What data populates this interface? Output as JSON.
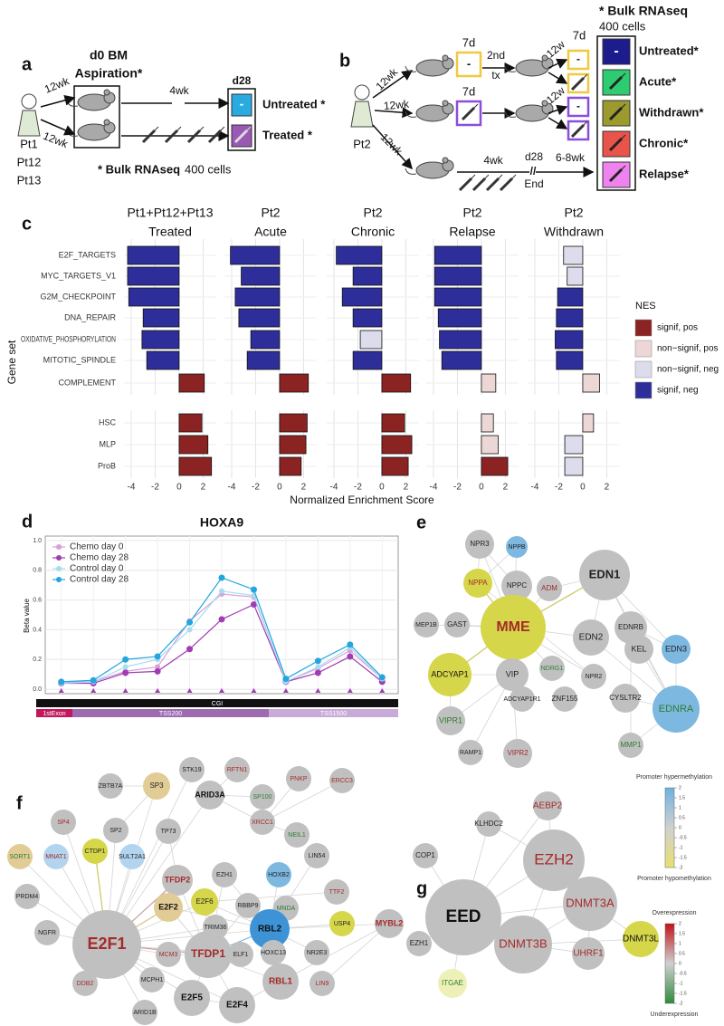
{
  "panels": {
    "a": {
      "label": "a",
      "step1": "d0 BM",
      "step1b": "Aspiration*",
      "time": "d28",
      "interval_1": "12wk",
      "interval_2": "12wk",
      "interval_3": "4wk",
      "patients": [
        "Pt1",
        "Pt12",
        "Pt13"
      ],
      "groups": [
        {
          "name": "Untreated *",
          "color": "#29abe2"
        },
        {
          "name": "Treated *",
          "color": "#9b59b6"
        }
      ],
      "symbol": "-",
      "note_bold": "* Bulk RNAseq",
      "note": "400 cells"
    },
    "b": {
      "label": "b",
      "patient": "Pt2",
      "intervals": [
        "12wk",
        "12wk",
        "12wk"
      ],
      "boxes": [
        "7d",
        "7d",
        "7d"
      ],
      "second_tx": [
        "2nd",
        "tx"
      ],
      "intervals_2": [
        "12w",
        "12w"
      ],
      "interval_bottom": "4wk",
      "day": "d28",
      "end": "End",
      "break": "//",
      "interval_relapse": "6-8wk",
      "symbol": "-",
      "note_bold": "* Bulk RNAseq",
      "note": "400 cells",
      "groups": [
        {
          "name": "Untreated*",
          "color": "#1c1c8c"
        },
        {
          "name": "Acute*",
          "color": "#2ecc71"
        },
        {
          "name": "Withdrawn*",
          "color": "#9a9a2e"
        },
        {
          "name": "Chronic*",
          "color": "#e8534a"
        },
        {
          "name": "Relapse*",
          "color": "#ee82ee"
        }
      ]
    },
    "e": {
      "label": "e",
      "nodes": [
        {
          "label": "NPR3",
          "color": "#c0c0c0",
          "text_color": "#222"
        },
        {
          "label": "NPPB",
          "color": "#7db8e0",
          "text_color": "#222"
        },
        {
          "label": "NPPC",
          "color": "#c0c0c0",
          "text_color": "#222"
        },
        {
          "label": "NPPA",
          "color": "#d6d64a",
          "text_color": "#a52a2a"
        },
        {
          "label": "ADM",
          "color": "#c0c0c0",
          "text_color": "#a52a2a"
        },
        {
          "label": "EDN1",
          "color": "#c0c0c0",
          "text_color": "#222"
        },
        {
          "label": "EDNRB",
          "color": "#c0c0c0",
          "text_color": "#222"
        },
        {
          "label": "MEP1B",
          "color": "#c0c0c0",
          "text_color": "#222"
        },
        {
          "label": "GAST",
          "color": "#c0c0c0",
          "text_color": "#222"
        },
        {
          "label": "MME",
          "color": "#d6d64a",
          "text_color": "#a52a2a"
        },
        {
          "label": "EDN2",
          "color": "#c0c0c0",
          "text_color": "#222"
        },
        {
          "label": "KEL",
          "color": "#c0c0c0",
          "text_color": "#222"
        },
        {
          "label": "EDN3",
          "color": "#7db8e0",
          "text_color": "#222"
        },
        {
          "label": "NDRG1",
          "color": "#c0c0c0",
          "text_color": "#2e7d32"
        },
        {
          "label": "NPR2",
          "color": "#c0c0c0",
          "text_color": "#222"
        },
        {
          "label": "ADCYAP1",
          "color": "#d6d64a",
          "text_color": "#111"
        },
        {
          "label": "VIP",
          "color": "#c0c0c0",
          "text_color": "#222"
        },
        {
          "label": "ADCYAP1R1",
          "color": "#c0c0c0",
          "text_color": "#222"
        },
        {
          "label": "ZNF155",
          "color": "#c0c0c0",
          "text_color": "#222"
        },
        {
          "label": "CYSLTR2",
          "color": "#c0c0c0",
          "text_color": "#222"
        },
        {
          "label": "EDNRA",
          "color": "#7db8e0",
          "text_color": "#2e7d32"
        },
        {
          "label": "VIPR1",
          "color": "#c0c0c0",
          "text_color": "#2e7d32"
        },
        {
          "label": "RAMP1",
          "color": "#c0c0c0",
          "text_color": "#222"
        },
        {
          "label": "VIPR2",
          "color": "#c0c0c0",
          "text_color": "#a52a2a"
        },
        {
          "label": "MMP1",
          "color": "#c0c0c0",
          "text_color": "#2e7d32"
        }
      ]
    },
    "f": {
      "label": "f",
      "nodes": [
        {
          "label": "STK19",
          "color": "#c0c0c0",
          "text_color": "#222"
        },
        {
          "label": "RFTN1",
          "color": "#c0c0c0",
          "text_color": "#a52a2a"
        },
        {
          "label": "ZBTB7A",
          "color": "#c0c0c0",
          "text_color": "#222"
        },
        {
          "label": "SP3",
          "color": "#e2cc95",
          "text_color": "#222"
        },
        {
          "label": "ARID3A",
          "color": "#c0c0c0",
          "text_color": "#111"
        },
        {
          "label": "SP100",
          "color": "#c0c0c0",
          "text_color": "#2e7d32"
        },
        {
          "label": "PNKP",
          "color": "#c0c0c0",
          "text_color": "#a52a2a"
        },
        {
          "label": "ERCC3",
          "color": "#c0c0c0",
          "text_color": "#a52a2a"
        },
        {
          "label": "SP4",
          "color": "#c0c0c0",
          "text_color": "#a52a2a"
        },
        {
          "label": "XRCC1",
          "color": "#c0c0c0",
          "text_color": "#a52a2a"
        },
        {
          "label": "NEIL1",
          "color": "#c0c0c0",
          "text_color": "#2e7d32"
        },
        {
          "label": "SP2",
          "color": "#c0c0c0",
          "text_color": "#222"
        },
        {
          "label": "TP73",
          "color": "#c0c0c0",
          "text_color": "#222"
        },
        {
          "label": "CTDP1",
          "color": "#d6d64a",
          "text_color": "#222"
        },
        {
          "label": "MNAT1",
          "color": "#b2d4ee",
          "text_color": "#a52a2a"
        },
        {
          "label": "SULT2A1",
          "color": "#b2d4ee",
          "text_color": "#222"
        },
        {
          "label": "TFDP2",
          "color": "#c0c0c0",
          "text_color": "#a52a2a"
        },
        {
          "label": "EZH1",
          "color": "#c0c0c0",
          "text_color": "#222"
        },
        {
          "label": "SORT1",
          "color": "#e2cc95",
          "text_color": "#2e7d32"
        },
        {
          "label": "HOXB2",
          "color": "#7db8e0",
          "text_color": "#222"
        },
        {
          "label": "LIN54",
          "color": "#c0c0c0",
          "text_color": "#222"
        },
        {
          "label": "PRDM4",
          "color": "#c0c0c0",
          "text_color": "#222"
        },
        {
          "label": "E2F6",
          "color": "#d6d64a",
          "text_color": "#222"
        },
        {
          "label": "RBBP9",
          "color": "#c0c0c0",
          "text_color": "#222"
        },
        {
          "label": "MNDA",
          "color": "#c0c0c0",
          "text_color": "#2e7d32"
        },
        {
          "label": "TTF2",
          "color": "#c0c0c0",
          "text_color": "#a52a2a"
        },
        {
          "label": "E2F2",
          "color": "#e2cc95",
          "text_color": "#111"
        },
        {
          "label": "TRIM36",
          "color": "#c0c0c0",
          "text_color": "#222"
        },
        {
          "label": "RBL2",
          "color": "#3d93d6",
          "text_color": "#111"
        },
        {
          "label": "USP4",
          "color": "#d6d64a",
          "text_color": "#222"
        },
        {
          "label": "MYBL2",
          "color": "#c0c0c0",
          "text_color": "#a52a2a"
        },
        {
          "label": "NGFR",
          "color": "#c0c0c0",
          "text_color": "#222"
        },
        {
          "label": "E2F1",
          "color": "#c0c0c0",
          "text_color": "#a52a2a"
        },
        {
          "label": "HOXC13",
          "color": "#c0c0c0",
          "text_color": "#222"
        },
        {
          "label": "NR2E3",
          "color": "#c0c0c0",
          "text_color": "#222"
        },
        {
          "label": "MCM3",
          "color": "#c0c0c0",
          "text_color": "#a52a2a"
        },
        {
          "label": "TFDP1",
          "color": "#c0c0c0",
          "text_color": "#a52a2a"
        },
        {
          "label": "ELF1",
          "color": "#c0c0c0",
          "text_color": "#222"
        },
        {
          "label": "MCPH1",
          "color": "#c0c0c0",
          "text_color": "#222"
        },
        {
          "label": "LIN9",
          "color": "#c0c0c0",
          "text_color": "#a52a2a"
        },
        {
          "label": "RBL1",
          "color": "#c0c0c0",
          "text_color": "#a52a2a"
        },
        {
          "label": "DDB2",
          "color": "#c0c0c0",
          "text_color": "#a52a2a"
        },
        {
          "label": "E2F5",
          "color": "#c0c0c0",
          "text_color": "#111"
        },
        {
          "label": "E2F4",
          "color": "#c0c0c0",
          "text_color": "#111"
        },
        {
          "label": "ARID1B",
          "color": "#c0c0c0",
          "text_color": "#222"
        }
      ]
    },
    "g": {
      "label": "g",
      "nodes": [
        {
          "label": "AEBP2",
          "color": "#c0c0c0",
          "text_color": "#a52a2a"
        },
        {
          "label": "KLHDC2",
          "color": "#c0c0c0",
          "text_color": "#222"
        },
        {
          "label": "EZH2",
          "color": "#c0c0c0",
          "text_color": "#a52a2a"
        },
        {
          "label": "COP1",
          "color": "#c0c0c0",
          "text_color": "#222"
        },
        {
          "label": "EED",
          "color": "#c0c0c0",
          "text_color": "#111"
        },
        {
          "label": "DNMT3A",
          "color": "#c0c0c0",
          "text_color": "#a52a2a"
        },
        {
          "label": "EZH1",
          "color": "#c0c0c0",
          "text_color": "#222"
        },
        {
          "label": "DNMT3B",
          "color": "#c0c0c0",
          "text_color": "#a52a2a"
        },
        {
          "label": "DNMT3L",
          "color": "#d6d64a",
          "text_color": "#111"
        },
        {
          "label": "UHRF1",
          "color": "#c0c0c0",
          "text_color": "#a52a2a"
        },
        {
          "label": "ITGAE",
          "color": "#eef0b8",
          "text_color": "#2e7d32"
        }
      ],
      "methylation_scale": {
        "top": "Promoter hypermethylation",
        "bottom": "Promoter hypomethylation",
        "colors": [
          "#6fb2e0",
          "#d0d0d0",
          "#e8e070"
        ]
      },
      "expression_scale": {
        "top": "Overexpression",
        "bottom": "Underexpression",
        "colors": [
          "#c0141a",
          "#d0d0d0",
          "#2e8b3a"
        ]
      },
      "scale_ticks": [
        2,
        1.5,
        1,
        0.5,
        0,
        -0.5,
        -1,
        -1.5,
        -2
      ]
    }
  },
  "chart_data": [
    {
      "type": "bar",
      "orientation": "horizontal",
      "label": "c",
      "categories": [
        "E2F_TARGETS",
        "MYC_TARGETS_V1",
        "G2M_CHECKPOINT",
        "DNA_REPAIR",
        "OXIDATIVE_PHOSPHORYLATION",
        "MITOTIC_SPINDLE",
        "COMPLEMENT",
        "HSC",
        "MLP",
        "ProB"
      ],
      "facets": [
        {
          "title": "Pt1+Pt12+Pt13",
          "subtitle": "Treated",
          "values": [
            -4.3,
            -4.3,
            -4.2,
            -3.0,
            -3.1,
            -2.7,
            2.1,
            1.9,
            2.4,
            2.7
          ],
          "colors": [
            "#2e2e9a",
            "#2e2e9a",
            "#2e2e9a",
            "#2e2e9a",
            "#2e2e9a",
            "#2e2e9a",
            "#8b2323",
            "#8b2323",
            "#8b2323",
            "#8b2323"
          ]
        },
        {
          "title": "Pt2",
          "subtitle": "Acute",
          "values": [
            -4.1,
            -3.2,
            -3.7,
            -3.4,
            -2.4,
            -2.7,
            2.4,
            2.3,
            2.2,
            1.8
          ],
          "colors": [
            "#2e2e9a",
            "#2e2e9a",
            "#2e2e9a",
            "#2e2e9a",
            "#2e2e9a",
            "#2e2e9a",
            "#8b2323",
            "#8b2323",
            "#8b2323",
            "#8b2323"
          ]
        },
        {
          "title": "Pt2",
          "subtitle": "Chronic",
          "values": [
            -3.8,
            -2.4,
            -3.3,
            -2.4,
            -1.8,
            -2.4,
            2.4,
            1.9,
            2.5,
            2.2
          ],
          "colors": [
            "#2e2e9a",
            "#2e2e9a",
            "#2e2e9a",
            "#2e2e9a",
            "#dcdcec",
            "#2e2e9a",
            "#8b2323",
            "#8b2323",
            "#8b2323",
            "#8b2323"
          ]
        },
        {
          "title": "Pt2",
          "subtitle": "Relapse",
          "values": [
            -3.9,
            -3.9,
            -3.9,
            -3.6,
            -3.5,
            -3.3,
            1.2,
            1.0,
            1.4,
            2.2
          ],
          "colors": [
            "#2e2e9a",
            "#2e2e9a",
            "#2e2e9a",
            "#2e2e9a",
            "#2e2e9a",
            "#2e2e9a",
            "#ecd6d6",
            "#ecd6d6",
            "#ecd6d6",
            "#8b2323"
          ]
        },
        {
          "title": "Pt2",
          "subtitle": "Withdrawn",
          "values": [
            -1.6,
            -1.3,
            -2.1,
            -2.2,
            -2.3,
            -2.2,
            1.4,
            0.9,
            -1.5,
            -1.5
          ],
          "colors": [
            "#dcdcec",
            "#dcdcec",
            "#2e2e9a",
            "#2e2e9a",
            "#2e2e9a",
            "#2e2e9a",
            "#ecd6d6",
            "#ecd6d6",
            "#dcdcec",
            "#dcdcec"
          ]
        }
      ],
      "xlim": [
        -4.6,
        3.1
      ],
      "xticks": [
        -4,
        -2,
        0,
        2
      ],
      "grid": true,
      "xlabel": "Normalized Enrichment Score",
      "ylabel": "Gene set",
      "legend_title": "NES",
      "legend": [
        {
          "name": "signif, pos",
          "color": "#8b2323"
        },
        {
          "name": "non−signif, pos",
          "color": "#ecd6d6"
        },
        {
          "name": "non−signif, neg",
          "color": "#dcdcec"
        },
        {
          "name": "signif, neg",
          "color": "#2e2e9a"
        }
      ]
    },
    {
      "type": "line",
      "label": "d",
      "title": "HOXA9",
      "ylabel": "Beta value",
      "categories": [
        null,
        null,
        null,
        null,
        null,
        null,
        null,
        null,
        null,
        null,
        null
      ],
      "ylim": [
        -0.03,
        1.03
      ],
      "yticks": [
        {
          "value": 0,
          "label": "0.0"
        },
        {
          "value": 0.2,
          "label": "0.2"
        },
        {
          "value": 0.4,
          "label": "0.4"
        },
        {
          "value": 0.6,
          "label": "0.6"
        },
        {
          "value": 0.8,
          "label": "0.8"
        },
        {
          "value": 1,
          "label": "1.0"
        }
      ],
      "grid": true,
      "legend": "top-left",
      "series": [
        {
          "name": "Chemo day 0",
          "color": "#d9a0d9",
          "values": [
            0.05,
            0.05,
            0.12,
            0.15,
            0.46,
            0.64,
            0.62,
            0.05,
            0.14,
            0.26,
            0.07
          ]
        },
        {
          "name": "Chemo day 28",
          "color": "#a03cb4",
          "values": [
            0.04,
            0.04,
            0.11,
            0.12,
            0.27,
            0.47,
            0.57,
            0.05,
            0.11,
            0.22,
            0.05
          ]
        },
        {
          "name": "Control day 0",
          "color": "#a8dcef",
          "values": [
            0.04,
            0.05,
            0.15,
            0.2,
            0.4,
            0.66,
            0.63,
            0.05,
            0.15,
            0.28,
            0.07
          ]
        },
        {
          "name": "Control day 28",
          "color": "#22a6e0",
          "values": [
            0.05,
            0.06,
            0.2,
            0.22,
            0.45,
            0.75,
            0.67,
            0.07,
            0.19,
            0.3,
            0.08
          ]
        }
      ],
      "cgi": "CGI",
      "regions": [
        {
          "name": "1stExon",
          "color": "#c2185b"
        },
        {
          "name": "TSS200",
          "color": "#9c6bb0"
        },
        {
          "name": "TSS1500",
          "color": "#c9a9d8"
        }
      ]
    }
  ]
}
